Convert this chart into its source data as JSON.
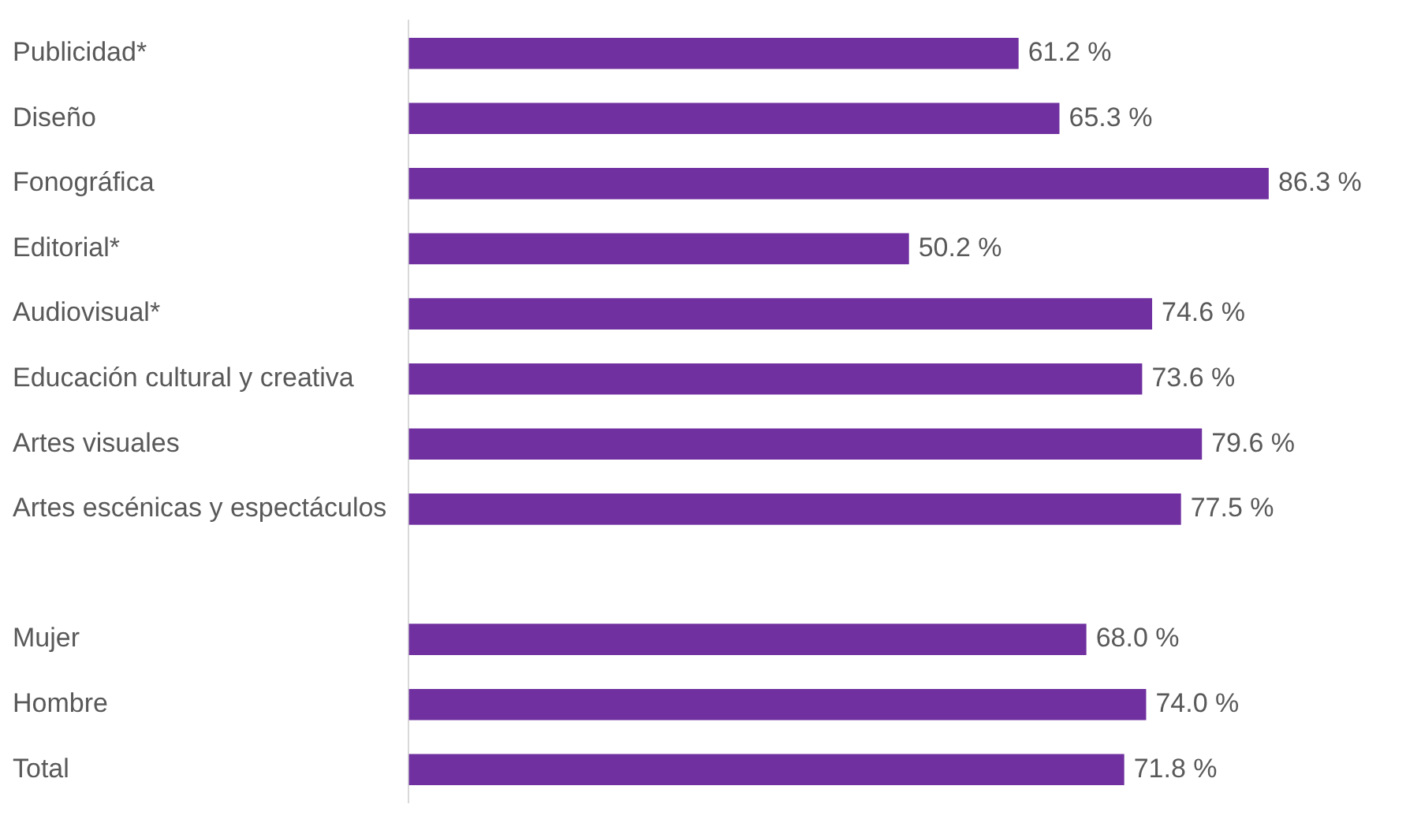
{
  "chart_data": {
    "type": "bar",
    "orientation": "horizontal",
    "categories": [
      "Publicidad*",
      "Diseño",
      "Fonográfica",
      "Editorial*",
      "Audiovisual*",
      "Educación cultural y creativa",
      "Artes visuales",
      "Artes escénicas y espectáculos",
      null,
      "Mujer",
      "Hombre",
      "Total"
    ],
    "values": [
      61.2,
      65.3,
      86.3,
      50.2,
      74.6,
      73.6,
      79.6,
      77.5,
      null,
      68.0,
      74.0,
      71.8
    ],
    "color": "#7030a0",
    "value_labels": [
      "61.2 %",
      "65.3 %",
      "86.3 %",
      "50.2 %",
      "74.6 %",
      "73.6 %",
      "79.6 %",
      "77.5 %",
      null,
      "68.0 %",
      "74.0 %",
      "71.8 %"
    ]
  }
}
